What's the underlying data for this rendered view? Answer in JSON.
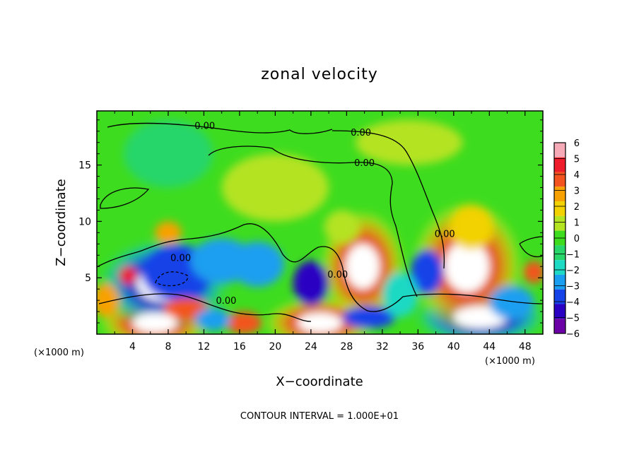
{
  "chart_data": {
    "type": "heatmap",
    "title": "zonal velocity",
    "xlabel": "X−coordinate",
    "ylabel": "Z−coordinate",
    "x_unit_left": "(×1000 m)",
    "x_unit_right": "(×1000 m)",
    "footer": "CONTOUR INTERVAL = 1.000E+01",
    "xlim": [
      0,
      50
    ],
    "ylim": [
      0,
      19.8
    ],
    "x_ticks": [
      4,
      8,
      12,
      16,
      20,
      24,
      28,
      32,
      36,
      40,
      44,
      48
    ],
    "y_ticks": [
      5,
      10,
      15
    ],
    "colorbar": {
      "ticks": [
        6,
        5,
        4,
        3,
        2,
        1,
        0,
        -1,
        -2,
        -3,
        -4,
        -5,
        -6
      ],
      "range": [
        -6,
        6
      ],
      "colors": [
        "#f6a9b6",
        "#ef1d2b",
        "#f3541f",
        "#f7a100",
        "#f2d200",
        "#b4e322",
        "#3edc1f",
        "#28d66a",
        "#1ed9c4",
        "#1a9ff0",
        "#1643e8",
        "#2a00c3",
        "#6a00a6"
      ]
    },
    "contour_labels": [
      {
        "text": "0.00",
        "x": 12.1,
        "y": 18.2
      },
      {
        "text": "0.00",
        "x": 29.6,
        "y": 17.6
      },
      {
        "text": "0.00",
        "x": 30.0,
        "y": 14.9
      },
      {
        "text": "0.00",
        "x": 9.4,
        "y": 6.5
      },
      {
        "text": "0.00",
        "x": 14.5,
        "y": 2.7
      },
      {
        "text": "0.00",
        "x": 27.0,
        "y": 5.0
      },
      {
        "text": "0.00",
        "x": 39.0,
        "y": 8.6
      }
    ],
    "field_features": [
      {
        "x": 7.5,
        "y": 4.5,
        "v": -6.5,
        "sx": 3.0,
        "sy": 1.6
      },
      {
        "x": 9.0,
        "y": 5.5,
        "v": -4.0,
        "sx": 4.0,
        "sy": 2.5
      },
      {
        "x": 14.0,
        "y": 6.5,
        "v": -3.0,
        "sx": 3.5,
        "sy": 2.0
      },
      {
        "x": 18.0,
        "y": 6.2,
        "v": -2.5,
        "sx": 3.0,
        "sy": 2.0
      },
      {
        "x": 10.0,
        "y": 2.2,
        "v": 4.0,
        "sx": 2.5,
        "sy": 1.0
      },
      {
        "x": 6.5,
        "y": 1.0,
        "v": 6.5,
        "sx": 2.5,
        "sy": 0.9
      },
      {
        "x": 3.5,
        "y": 5.2,
        "v": 5.0,
        "sx": 1.0,
        "sy": 0.8
      },
      {
        "x": 1.0,
        "y": 3.0,
        "v": 3.0,
        "sx": 1.5,
        "sy": 1.5
      },
      {
        "x": 16.5,
        "y": 1.0,
        "v": 4.0,
        "sx": 2.0,
        "sy": 1.0
      },
      {
        "x": 13.0,
        "y": 1.3,
        "v": -3.0,
        "sx": 2.0,
        "sy": 1.0
      },
      {
        "x": 24.0,
        "y": 4.5,
        "v": -5.0,
        "sx": 2.0,
        "sy": 2.0
      },
      {
        "x": 25.0,
        "y": 1.0,
        "v": 6.5,
        "sx": 2.5,
        "sy": 0.9
      },
      {
        "x": 29.8,
        "y": 6.0,
        "v": 7.0,
        "sx": 1.9,
        "sy": 2.0
      },
      {
        "x": 30.5,
        "y": 1.5,
        "v": -3.5,
        "sx": 3.0,
        "sy": 1.0
      },
      {
        "x": 37.0,
        "y": 5.5,
        "v": -3.5,
        "sx": 1.8,
        "sy": 2.0
      },
      {
        "x": 34.0,
        "y": 3.5,
        "v": -1.5,
        "sx": 2.0,
        "sy": 2.0
      },
      {
        "x": 41.5,
        "y": 6.0,
        "v": 7.0,
        "sx": 2.5,
        "sy": 2.3
      },
      {
        "x": 42.0,
        "y": 9.5,
        "v": 2.0,
        "sx": 2.5,
        "sy": 2.0
      },
      {
        "x": 43.0,
        "y": 1.5,
        "v": -6.5,
        "sx": 3.0,
        "sy": 1.0
      },
      {
        "x": 46.5,
        "y": 2.8,
        "v": -2.5,
        "sx": 2.5,
        "sy": 1.5
      },
      {
        "x": 49.0,
        "y": 5.5,
        "v": 4.0,
        "sx": 1.2,
        "sy": 1.0
      },
      {
        "x": 8.0,
        "y": 9.0,
        "v": 3.0,
        "sx": 1.5,
        "sy": 1.0
      },
      {
        "x": 27.5,
        "y": 9.5,
        "v": 1.5,
        "sx": 2.0,
        "sy": 1.5
      },
      {
        "x": 20.0,
        "y": 13.0,
        "v": 0.8,
        "sx": 6.0,
        "sy": 3.0
      },
      {
        "x": 35.0,
        "y": 17.0,
        "v": 0.8,
        "sx": 6.0,
        "sy": 2.0
      },
      {
        "x": 8.0,
        "y": 16.0,
        "v": -0.6,
        "sx": 5.0,
        "sy": 3.0
      }
    ]
  }
}
